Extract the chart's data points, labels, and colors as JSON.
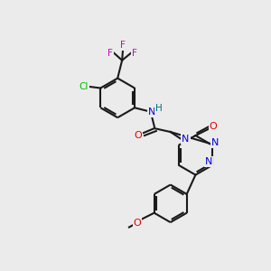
{
  "background_color": "#ebebeb",
  "bond_color": "#1a1a1a",
  "atom_colors": {
    "N": "#0000e0",
    "O": "#e00000",
    "F": "#cc00cc",
    "Cl": "#00bb00",
    "C": "#1a1a1a",
    "H": "#007070"
  },
  "figsize": [
    3.0,
    3.0
  ],
  "dpi": 100
}
